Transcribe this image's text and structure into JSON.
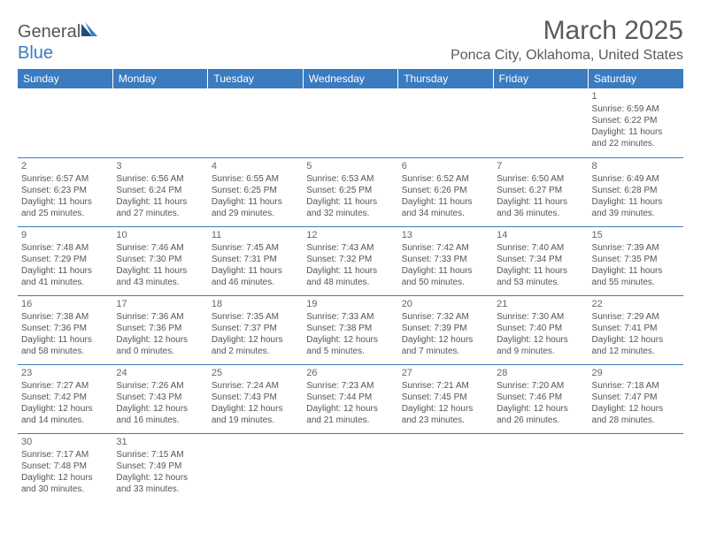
{
  "logo": {
    "part1": "General",
    "part2": "Blue"
  },
  "title": "March 2025",
  "location": "Ponca City, Oklahoma, United States",
  "weekdays": [
    "Sunday",
    "Monday",
    "Tuesday",
    "Wednesday",
    "Thursday",
    "Friday",
    "Saturday"
  ],
  "colors": {
    "header_bg": "#3b7bbf",
    "header_fg": "#ffffff",
    "cell_border": "#3b7bbf",
    "text": "#555555"
  },
  "weeks": [
    [
      null,
      null,
      null,
      null,
      null,
      null,
      {
        "day": "1",
        "sunrise": "Sunrise: 6:59 AM",
        "sunset": "Sunset: 6:22 PM",
        "daylight1": "Daylight: 11 hours",
        "daylight2": "and 22 minutes."
      }
    ],
    [
      {
        "day": "2",
        "sunrise": "Sunrise: 6:57 AM",
        "sunset": "Sunset: 6:23 PM",
        "daylight1": "Daylight: 11 hours",
        "daylight2": "and 25 minutes."
      },
      {
        "day": "3",
        "sunrise": "Sunrise: 6:56 AM",
        "sunset": "Sunset: 6:24 PM",
        "daylight1": "Daylight: 11 hours",
        "daylight2": "and 27 minutes."
      },
      {
        "day": "4",
        "sunrise": "Sunrise: 6:55 AM",
        "sunset": "Sunset: 6:25 PM",
        "daylight1": "Daylight: 11 hours",
        "daylight2": "and 29 minutes."
      },
      {
        "day": "5",
        "sunrise": "Sunrise: 6:53 AM",
        "sunset": "Sunset: 6:25 PM",
        "daylight1": "Daylight: 11 hours",
        "daylight2": "and 32 minutes."
      },
      {
        "day": "6",
        "sunrise": "Sunrise: 6:52 AM",
        "sunset": "Sunset: 6:26 PM",
        "daylight1": "Daylight: 11 hours",
        "daylight2": "and 34 minutes."
      },
      {
        "day": "7",
        "sunrise": "Sunrise: 6:50 AM",
        "sunset": "Sunset: 6:27 PM",
        "daylight1": "Daylight: 11 hours",
        "daylight2": "and 36 minutes."
      },
      {
        "day": "8",
        "sunrise": "Sunrise: 6:49 AM",
        "sunset": "Sunset: 6:28 PM",
        "daylight1": "Daylight: 11 hours",
        "daylight2": "and 39 minutes."
      }
    ],
    [
      {
        "day": "9",
        "sunrise": "Sunrise: 7:48 AM",
        "sunset": "Sunset: 7:29 PM",
        "daylight1": "Daylight: 11 hours",
        "daylight2": "and 41 minutes."
      },
      {
        "day": "10",
        "sunrise": "Sunrise: 7:46 AM",
        "sunset": "Sunset: 7:30 PM",
        "daylight1": "Daylight: 11 hours",
        "daylight2": "and 43 minutes."
      },
      {
        "day": "11",
        "sunrise": "Sunrise: 7:45 AM",
        "sunset": "Sunset: 7:31 PM",
        "daylight1": "Daylight: 11 hours",
        "daylight2": "and 46 minutes."
      },
      {
        "day": "12",
        "sunrise": "Sunrise: 7:43 AM",
        "sunset": "Sunset: 7:32 PM",
        "daylight1": "Daylight: 11 hours",
        "daylight2": "and 48 minutes."
      },
      {
        "day": "13",
        "sunrise": "Sunrise: 7:42 AM",
        "sunset": "Sunset: 7:33 PM",
        "daylight1": "Daylight: 11 hours",
        "daylight2": "and 50 minutes."
      },
      {
        "day": "14",
        "sunrise": "Sunrise: 7:40 AM",
        "sunset": "Sunset: 7:34 PM",
        "daylight1": "Daylight: 11 hours",
        "daylight2": "and 53 minutes."
      },
      {
        "day": "15",
        "sunrise": "Sunrise: 7:39 AM",
        "sunset": "Sunset: 7:35 PM",
        "daylight1": "Daylight: 11 hours",
        "daylight2": "and 55 minutes."
      }
    ],
    [
      {
        "day": "16",
        "sunrise": "Sunrise: 7:38 AM",
        "sunset": "Sunset: 7:36 PM",
        "daylight1": "Daylight: 11 hours",
        "daylight2": "and 58 minutes."
      },
      {
        "day": "17",
        "sunrise": "Sunrise: 7:36 AM",
        "sunset": "Sunset: 7:36 PM",
        "daylight1": "Daylight: 12 hours",
        "daylight2": "and 0 minutes."
      },
      {
        "day": "18",
        "sunrise": "Sunrise: 7:35 AM",
        "sunset": "Sunset: 7:37 PM",
        "daylight1": "Daylight: 12 hours",
        "daylight2": "and 2 minutes."
      },
      {
        "day": "19",
        "sunrise": "Sunrise: 7:33 AM",
        "sunset": "Sunset: 7:38 PM",
        "daylight1": "Daylight: 12 hours",
        "daylight2": "and 5 minutes."
      },
      {
        "day": "20",
        "sunrise": "Sunrise: 7:32 AM",
        "sunset": "Sunset: 7:39 PM",
        "daylight1": "Daylight: 12 hours",
        "daylight2": "and 7 minutes."
      },
      {
        "day": "21",
        "sunrise": "Sunrise: 7:30 AM",
        "sunset": "Sunset: 7:40 PM",
        "daylight1": "Daylight: 12 hours",
        "daylight2": "and 9 minutes."
      },
      {
        "day": "22",
        "sunrise": "Sunrise: 7:29 AM",
        "sunset": "Sunset: 7:41 PM",
        "daylight1": "Daylight: 12 hours",
        "daylight2": "and 12 minutes."
      }
    ],
    [
      {
        "day": "23",
        "sunrise": "Sunrise: 7:27 AM",
        "sunset": "Sunset: 7:42 PM",
        "daylight1": "Daylight: 12 hours",
        "daylight2": "and 14 minutes."
      },
      {
        "day": "24",
        "sunrise": "Sunrise: 7:26 AM",
        "sunset": "Sunset: 7:43 PM",
        "daylight1": "Daylight: 12 hours",
        "daylight2": "and 16 minutes."
      },
      {
        "day": "25",
        "sunrise": "Sunrise: 7:24 AM",
        "sunset": "Sunset: 7:43 PM",
        "daylight1": "Daylight: 12 hours",
        "daylight2": "and 19 minutes."
      },
      {
        "day": "26",
        "sunrise": "Sunrise: 7:23 AM",
        "sunset": "Sunset: 7:44 PM",
        "daylight1": "Daylight: 12 hours",
        "daylight2": "and 21 minutes."
      },
      {
        "day": "27",
        "sunrise": "Sunrise: 7:21 AM",
        "sunset": "Sunset: 7:45 PM",
        "daylight1": "Daylight: 12 hours",
        "daylight2": "and 23 minutes."
      },
      {
        "day": "28",
        "sunrise": "Sunrise: 7:20 AM",
        "sunset": "Sunset: 7:46 PM",
        "daylight1": "Daylight: 12 hours",
        "daylight2": "and 26 minutes."
      },
      {
        "day": "29",
        "sunrise": "Sunrise: 7:18 AM",
        "sunset": "Sunset: 7:47 PM",
        "daylight1": "Daylight: 12 hours",
        "daylight2": "and 28 minutes."
      }
    ],
    [
      {
        "day": "30",
        "sunrise": "Sunrise: 7:17 AM",
        "sunset": "Sunset: 7:48 PM",
        "daylight1": "Daylight: 12 hours",
        "daylight2": "and 30 minutes."
      },
      {
        "day": "31",
        "sunrise": "Sunrise: 7:15 AM",
        "sunset": "Sunset: 7:49 PM",
        "daylight1": "Daylight: 12 hours",
        "daylight2": "and 33 minutes."
      },
      null,
      null,
      null,
      null,
      null
    ]
  ]
}
